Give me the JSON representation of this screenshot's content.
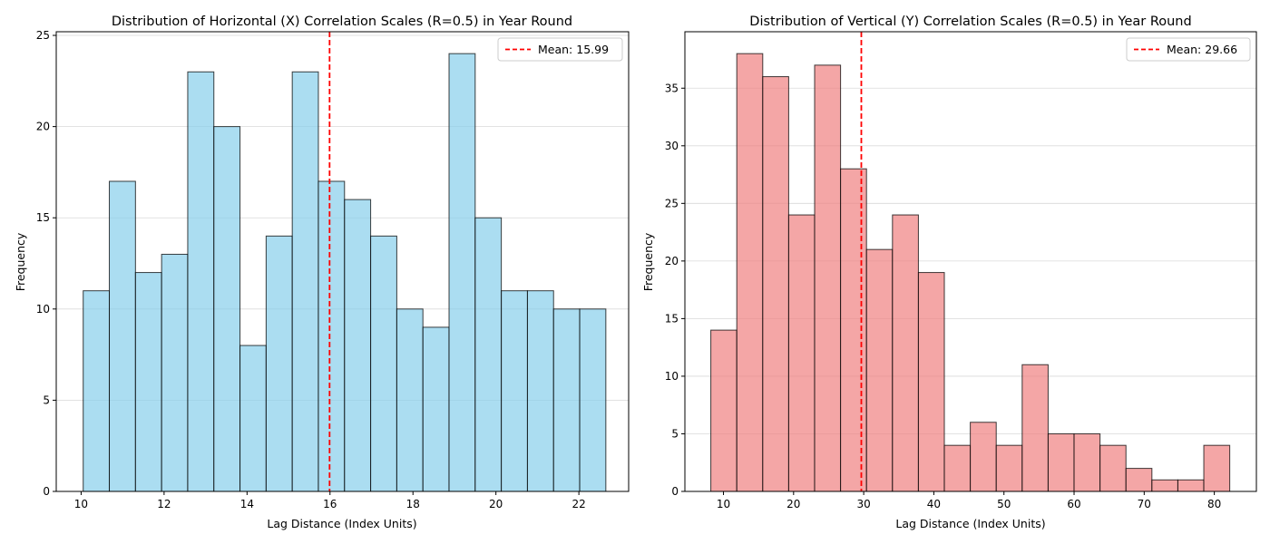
{
  "chart_data": [
    {
      "type": "bar",
      "title": "Distribution of Horizontal (X) Correlation Scales (R=0.5) in Year Round",
      "xlabel": "Lag Distance (Index Units)",
      "ylabel": "Frequency",
      "bin_start": 10.05,
      "bin_width": 0.63,
      "values": [
        11,
        17,
        12,
        13,
        23,
        20,
        8,
        14,
        23,
        17,
        16,
        14,
        10,
        9,
        24,
        15,
        11,
        11,
        10,
        10
      ],
      "xlim": [
        9.4,
        23.2
      ],
      "ylim": [
        0,
        25.2
      ],
      "xticks": [
        10,
        12,
        14,
        16,
        18,
        20,
        22
      ],
      "yticks": [
        0,
        5,
        10,
        15,
        20,
        25
      ],
      "bar_color": "#87CEEB",
      "mean": 15.99,
      "mean_label": "Mean: 15.99",
      "mean_color": "#ff0000",
      "legend_position": "top-right",
      "grid": "y"
    },
    {
      "type": "bar",
      "title": "Distribution of Vertical (Y) Correlation Scales (R=0.5) in Year Round",
      "xlabel": "Lag Distance (Index Units)",
      "ylabel": "Frequency",
      "bin_start": 8.2,
      "bin_width": 3.7,
      "values": [
        14,
        38,
        36,
        24,
        37,
        28,
        21,
        24,
        19,
        4,
        6,
        4,
        11,
        5,
        5,
        4,
        2,
        1,
        1,
        4
      ],
      "xlim": [
        4.5,
        86.0
      ],
      "ylim": [
        0,
        39.9
      ],
      "xticks": [
        10,
        20,
        30,
        40,
        50,
        60,
        70,
        80
      ],
      "yticks": [
        0,
        5,
        10,
        15,
        20,
        25,
        30,
        35
      ],
      "bar_color": "#F08080",
      "mean": 29.66,
      "mean_label": "Mean: 29.66",
      "mean_color": "#ff0000",
      "legend_position": "top-right",
      "grid": "y"
    }
  ]
}
